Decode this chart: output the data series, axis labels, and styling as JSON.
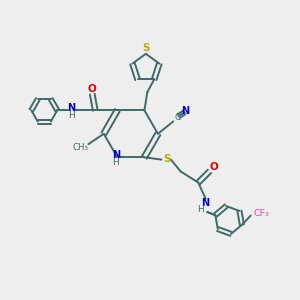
{
  "background_color": "#eeeeee",
  "bond_color": "#3d6b6b",
  "bond_lw": 1.4,
  "atom_colors": {
    "N": "#0000cc",
    "O": "#dd0000",
    "S": "#bbaa00",
    "C": "#3d6b6b",
    "F": "#ee44aa",
    "H": "#3d6b6b"
  },
  "figsize": [
    3.0,
    3.0
  ],
  "dpi": 100,
  "xlim": [
    0,
    10
  ],
  "ylim": [
    0,
    10
  ]
}
